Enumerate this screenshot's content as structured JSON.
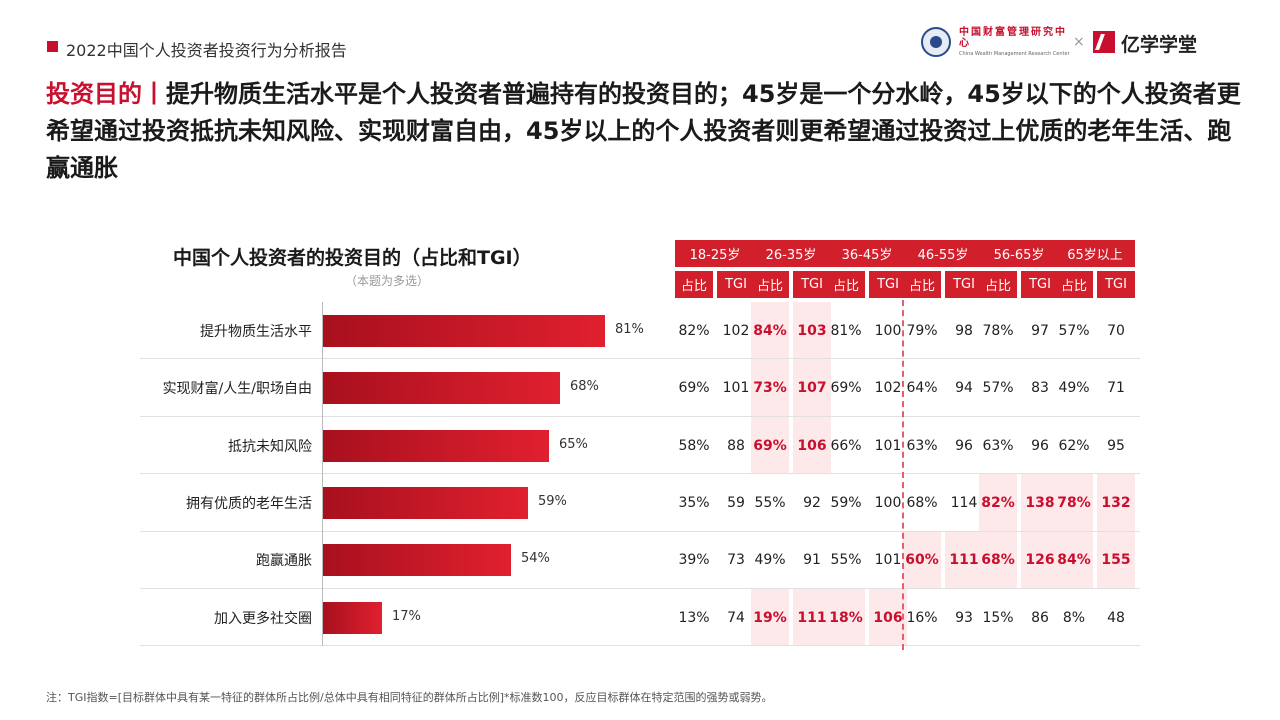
{
  "header": {
    "text": "2022中国个人投资者投资行为分析报告"
  },
  "logos": {
    "partner1_cn": "中国财富管理研究中心",
    "partner1_en": "China Wealth Management Research Center",
    "separator": "×",
    "partner2": "亿学学堂"
  },
  "title": {
    "accent": "投资目的丨",
    "text": "提升物质生活水平是个人投资者普遍持有的投资目的；45岁是一个分水岭，45岁以下的个人投资者更希望通过投资抵抗未知风险、实现财富自由，45岁以上的个人投资者则更希望通过投资过上优质的老年生活、跑赢通胀"
  },
  "chart_data": {
    "type": "bar",
    "orientation": "horizontal",
    "title": "中国个人投资者的投资目的（占比和TGI）",
    "subtitle": "（本题为多选）",
    "categories": [
      "提升物质生活水平",
      "实现财富/人生/职场自由",
      "抵抗未知风险",
      "拥有优质的老年生活",
      "跑赢通胀",
      "加入更多社交圈"
    ],
    "values": [
      81,
      68,
      65,
      59,
      54,
      17
    ],
    "value_labels": [
      "81%",
      "68%",
      "65%",
      "59%",
      "54%",
      "17%"
    ],
    "xlim": [
      0,
      100
    ],
    "bar_color": "#d21f2c",
    "table": {
      "age_groups": [
        "18-25岁",
        "26-35岁",
        "36-45岁",
        "46-55岁",
        "56-65岁",
        "65岁以上"
      ],
      "sub_headers": [
        "占比",
        "TGI"
      ],
      "rows": [
        [
          [
            "82%",
            "102"
          ],
          [
            "84%",
            "103"
          ],
          [
            "81%",
            "100"
          ],
          [
            "79%",
            "98"
          ],
          [
            "78%",
            "97"
          ],
          [
            "57%",
            "70"
          ]
        ],
        [
          [
            "69%",
            "101"
          ],
          [
            "73%",
            "107"
          ],
          [
            "69%",
            "102"
          ],
          [
            "64%",
            "94"
          ],
          [
            "57%",
            "83"
          ],
          [
            "49%",
            "71"
          ]
        ],
        [
          [
            "58%",
            "88"
          ],
          [
            "69%",
            "106"
          ],
          [
            "66%",
            "101"
          ],
          [
            "63%",
            "96"
          ],
          [
            "63%",
            "96"
          ],
          [
            "62%",
            "95"
          ]
        ],
        [
          [
            "35%",
            "59"
          ],
          [
            "55%",
            "92"
          ],
          [
            "59%",
            "100"
          ],
          [
            "68%",
            "114"
          ],
          [
            "82%",
            "138"
          ],
          [
            "78%",
            "132"
          ]
        ],
        [
          [
            "39%",
            "73"
          ],
          [
            "49%",
            "91"
          ],
          [
            "55%",
            "101"
          ],
          [
            "60%",
            "111"
          ],
          [
            "68%",
            "126"
          ],
          [
            "84%",
            "155"
          ]
        ],
        [
          [
            "13%",
            "74"
          ],
          [
            "19%",
            "111"
          ],
          [
            "18%",
            "106"
          ],
          [
            "16%",
            "93"
          ],
          [
            "15%",
            "86"
          ],
          [
            "8%",
            "48"
          ]
        ]
      ],
      "highlight": [
        [
          false,
          true,
          false,
          false,
          false,
          false
        ],
        [
          false,
          true,
          false,
          false,
          false,
          false
        ],
        [
          false,
          true,
          false,
          false,
          false,
          false
        ],
        [
          false,
          false,
          false,
          false,
          true,
          true
        ],
        [
          false,
          false,
          false,
          true,
          true,
          true
        ],
        [
          false,
          true,
          true,
          false,
          false,
          false
        ]
      ],
      "highlight_color": "#c8102e"
    }
  },
  "footnote": "注：TGI指数=[目标群体中具有某一特征的群体所占比例/总体中具有相同特征的群体所占比例]*标准数100，反应目标群体在特定范围的强势或弱势。"
}
